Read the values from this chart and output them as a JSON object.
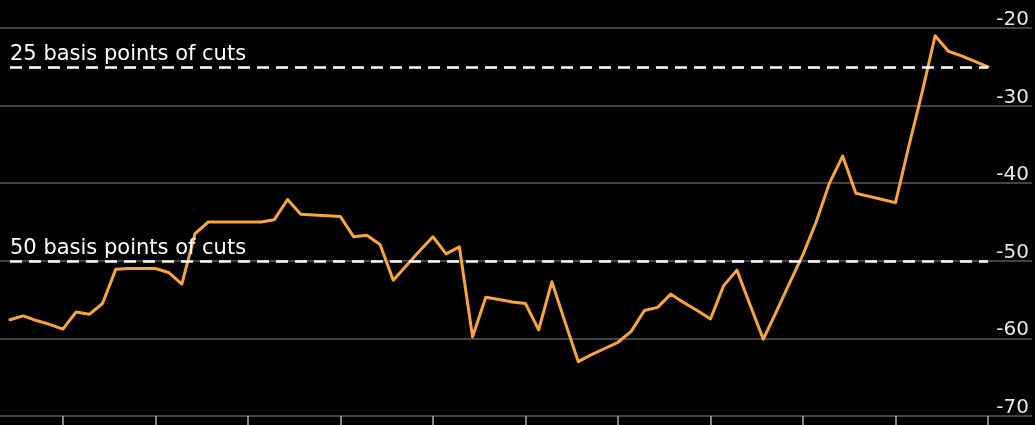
{
  "chart_data": {
    "type": "line",
    "categories": [
      null,
      null,
      null,
      null,
      null,
      null,
      null,
      null,
      null,
      null,
      null,
      null,
      null,
      null,
      null,
      null,
      null,
      null,
      null,
      null,
      null,
      null,
      null,
      null,
      null,
      null,
      null,
      null,
      null,
      null,
      null,
      null,
      null,
      null,
      null,
      null,
      null,
      null,
      null,
      null,
      null,
      null,
      null,
      null,
      null,
      null,
      null,
      null,
      null,
      null,
      null,
      null,
      null,
      null,
      null,
      null,
      null,
      null,
      null,
      null,
      null,
      null,
      null,
      null,
      null,
      null,
      null,
      null,
      null,
      null,
      null,
      null,
      null,
      null,
      null
    ],
    "series": [
      {
        "color": "#f9a53a",
        "values": [
          -57.6,
          -57.1,
          -57.7,
          -58.2,
          -58.8,
          -56.6,
          -56.9,
          -55.5,
          -51.1,
          -51.0,
          -51.0,
          -51.0,
          -51.5,
          -53.0,
          -46.5,
          -45.0,
          -45.0,
          -45.0,
          -45.0,
          -45.0,
          -44.7,
          -42.1,
          -44.0,
          -44.1,
          -44.2,
          -44.3,
          -46.9,
          -46.7,
          -47.9,
          -52.5,
          -50.6,
          -48.7,
          -46.9,
          -49.1,
          -48.2,
          -59.8,
          -54.7,
          -55.0,
          -55.3,
          -55.5,
          -58.9,
          -52.7,
          -57.9,
          -63.0,
          -62.1,
          -61.3,
          -60.5,
          -59.1,
          -56.4,
          -56.0,
          -54.3,
          -55.4,
          -56.4,
          -57.5,
          -53.2,
          -51.2,
          -55.7,
          -60.1,
          -56.5,
          -52.8,
          -49.2,
          -45.0,
          -40.0,
          -36.5,
          -41.3,
          -41.7,
          -42.1,
          -42.5,
          -35.3,
          -28.4,
          -21.0,
          -23.0,
          -23.6,
          -24.3,
          -25.0
        ]
      }
    ],
    "ylim": [
      -70,
      -20
    ],
    "yticks": [
      -70,
      -60,
      -50,
      -40,
      -30,
      -20
    ],
    "grid": "y",
    "tick_labels": "y",
    "marker": "none",
    "line_style": "solid",
    "ref_lines": [
      {
        "axis": "y",
        "value": -25,
        "label": "25 basis points of cuts",
        "color": "#ffffff",
        "line_style": "dashed"
      },
      {
        "axis": "y",
        "value": -50,
        "label": "50 basis points of cuts",
        "color": "#ffffff",
        "line_style": "dashed"
      }
    ]
  }
}
